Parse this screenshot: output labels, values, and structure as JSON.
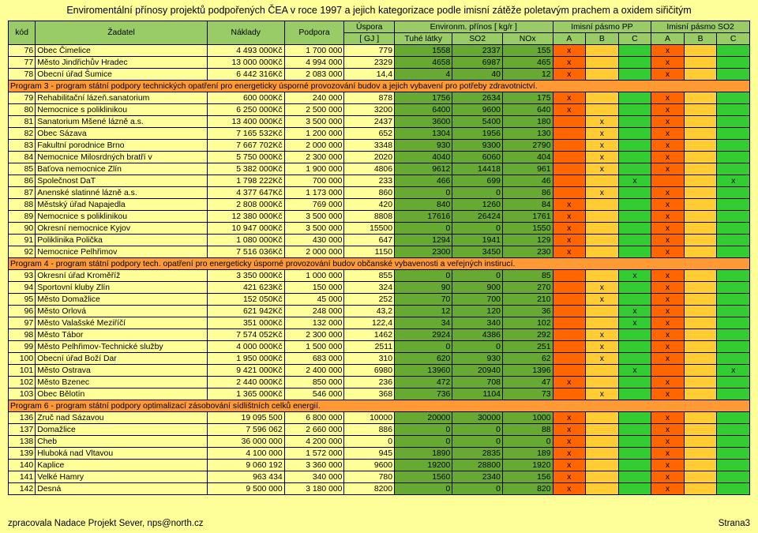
{
  "title": "Enviromentální přínosy projektů podpořených ČEA v roce 1997 a jejich kategorizace podle imisní zátěže poletavým prachem a oxidem siřičitým",
  "footer_left": "zpracovala Nadace Projekt Sever, nps@north.cz",
  "footer_right": "Strana3",
  "header": {
    "kod": "kód",
    "zadatel": "Žadatel",
    "naklady": "Náklady",
    "podpora": "Podpora",
    "uspora": "Úspora",
    "gj": "[ GJ ]",
    "environm": "Environm. přínos [ kg/r ]",
    "tuhe": "Tuhé látky",
    "so2": "SO2",
    "nox": "NOx",
    "pp": "Imisní pásmo PP",
    "pso2": "Imisní pásmo SO2",
    "a": "A",
    "b": "B",
    "c": "C"
  },
  "colors": {
    "sec_bg": "#ff9933",
    "band_a": "#ff6600",
    "band_b": "#ffcc33",
    "band_c": "#33cc33",
    "num_bg": "#66aa33",
    "hdr_bg": "#99cc66",
    "page_bg": "#ffff99"
  },
  "sections": [
    {
      "rows": [
        {
          "kod": "76",
          "zad": "Obec Čimelice",
          "nak": "4 493 000Kč",
          "pod": "1 700 000",
          "usp": "779",
          "tuh": "1558",
          "so2": "2337",
          "nox": "155",
          "pp": [
            true,
            false,
            false
          ],
          "ps": [
            true,
            false,
            false
          ]
        },
        {
          "kod": "77",
          "zad": "Město Jindřichův Hradec",
          "nak": "13 000 000Kč",
          "pod": "4 994 000",
          "usp": "2329",
          "tuh": "4658",
          "so2": "6987",
          "nox": "465",
          "pp": [
            true,
            false,
            false
          ],
          "ps": [
            true,
            false,
            false
          ]
        },
        {
          "kod": "78",
          "zad": "Obecní úřad Šumice",
          "nak": "6 442 316Kč",
          "pod": "2 083 000",
          "usp": "14,4",
          "tuh": "4",
          "so2": "40",
          "nox": "12",
          "pp": [
            true,
            false,
            false
          ],
          "ps": [
            true,
            false,
            false
          ]
        }
      ]
    },
    {
      "title": "Program 3 - program státní podpory technických opatření pro energeticky úsporné provozování budov a jejich vybavení pro potřeby zdravotnictví.",
      "rows": [
        {
          "kod": "79",
          "zad": "Rehabilitační lázeň.sanatorium",
          "nak": "600 000Kč",
          "pod": "240 000",
          "usp": "878",
          "tuh": "1756",
          "so2": "2634",
          "nox": "175",
          "pp": [
            true,
            false,
            false
          ],
          "ps": [
            true,
            false,
            false
          ]
        },
        {
          "kod": "80",
          "zad": "Nemocnice s poliklinikou",
          "nak": "6 250 000Kč",
          "pod": "2 500 000",
          "usp": "3200",
          "tuh": "6400",
          "so2": "9600",
          "nox": "640",
          "pp": [
            true,
            false,
            false
          ],
          "ps": [
            true,
            false,
            false
          ]
        },
        {
          "kod": "81",
          "zad": "Sanatorium Mšené lázně a.s.",
          "nak": "13 400 000Kč",
          "pod": "3 500 000",
          "usp": "2437",
          "tuh": "3600",
          "so2": "5400",
          "nox": "180",
          "pp": [
            false,
            true,
            false
          ],
          "ps": [
            true,
            false,
            false
          ]
        },
        {
          "kod": "82",
          "zad": "Obec Sázava",
          "nak": "7 165 532Kč",
          "pod": "1 200 000",
          "usp": "652",
          "tuh": "1304",
          "so2": "1956",
          "nox": "130",
          "pp": [
            false,
            true,
            false
          ],
          "ps": [
            true,
            false,
            false
          ]
        },
        {
          "kod": "83",
          "zad": "Fakultní porodnice Brno",
          "nak": "7 667 702Kč",
          "pod": "2 000 000",
          "usp": "3348",
          "tuh": "930",
          "so2": "9300",
          "nox": "2790",
          "pp": [
            false,
            true,
            false
          ],
          "ps": [
            true,
            false,
            false
          ]
        },
        {
          "kod": "84",
          "zad": "Nemocnice Milosrdných bratří v",
          "nak": "5 750 000Kč",
          "pod": "2 300 000",
          "usp": "2020",
          "tuh": "4040",
          "so2": "6060",
          "nox": "404",
          "pp": [
            false,
            true,
            false
          ],
          "ps": [
            true,
            false,
            false
          ]
        },
        {
          "kod": "85",
          "zad": "Baťova nemocnice Zlín",
          "nak": "5 382 000Kč",
          "pod": "1 900 000",
          "usp": "4806",
          "tuh": "9612",
          "so2": "14418",
          "nox": "961",
          "pp": [
            false,
            true,
            false
          ],
          "ps": [
            true,
            false,
            false
          ]
        },
        {
          "kod": "86",
          "zad": "Společnost DaT",
          "nak": "1 798 222Kč",
          "pod": "700 000",
          "usp": "233",
          "tuh": "466",
          "so2": "699",
          "nox": "46",
          "pp": [
            false,
            false,
            true
          ],
          "ps": [
            false,
            false,
            true
          ]
        },
        {
          "kod": "87",
          "zad": "Anenské slatinné lázně a.s.",
          "nak": "4 377 647Kč",
          "pod": "1 173 000",
          "usp": "860",
          "tuh": "0",
          "so2": "0",
          "nox": "86",
          "pp": [
            false,
            true,
            false
          ],
          "ps": [
            true,
            false,
            false
          ]
        },
        {
          "kod": "88",
          "zad": "Městský úřad Napajedla",
          "nak": "2 808 000Kč",
          "pod": "769 000",
          "usp": "420",
          "tuh": "840",
          "so2": "1260",
          "nox": "84",
          "pp": [
            true,
            false,
            false
          ],
          "ps": [
            true,
            false,
            false
          ]
        },
        {
          "kod": "89",
          "zad": "Nemocnice s poliklinikou",
          "nak": "12 380 000Kč",
          "pod": "3 500 000",
          "usp": "8808",
          "tuh": "17616",
          "so2": "26424",
          "nox": "1761",
          "pp": [
            true,
            false,
            false
          ],
          "ps": [
            true,
            false,
            false
          ]
        },
        {
          "kod": "90",
          "zad": "Okresní nemocnice Kyjov",
          "nak": "10 947 000Kč",
          "pod": "3 500 000",
          "usp": "15500",
          "tuh": "0",
          "so2": "0",
          "nox": "1550",
          "pp": [
            true,
            false,
            false
          ],
          "ps": [
            true,
            false,
            false
          ]
        },
        {
          "kod": "91",
          "zad": "Poliklinika Polička",
          "nak": "1 080 000Kč",
          "pod": "430 000",
          "usp": "647",
          "tuh": "1294",
          "so2": "1941",
          "nox": "129",
          "pp": [
            true,
            false,
            false
          ],
          "ps": [
            true,
            false,
            false
          ]
        },
        {
          "kod": "92",
          "zad": "Nemocnice Pelhřimov",
          "nak": "7 516 036Kč",
          "pod": "2 000 000",
          "usp": "1150",
          "tuh": "2300",
          "so2": "3450",
          "nox": "230",
          "pp": [
            true,
            false,
            false
          ],
          "ps": [
            true,
            false,
            false
          ]
        }
      ]
    },
    {
      "title": "Program 4 - program státní podpory tech. opatření pro energeticky úsporné provozování budov občanské vybavenosti a veřejných instirucí.",
      "rows": [
        {
          "kod": "93",
          "zad": "Okresní úřad Kroměříž",
          "nak": "3 350 000Kč",
          "pod": "1 000 000",
          "usp": "855",
          "tuh": "0",
          "so2": "0",
          "nox": "85",
          "pp": [
            false,
            false,
            true
          ],
          "ps": [
            true,
            false,
            false
          ]
        },
        {
          "kod": "94",
          "zad": "Sportovní kluby Zlín",
          "nak": "421 623Kč",
          "pod": "150 000",
          "usp": "324",
          "tuh": "90",
          "so2": "900",
          "nox": "270",
          "pp": [
            false,
            true,
            false
          ],
          "ps": [
            true,
            false,
            false
          ]
        },
        {
          "kod": "95",
          "zad": "Město Domažlice",
          "nak": "152 050Kč",
          "pod": "45 000",
          "usp": "252",
          "tuh": "70",
          "so2": "700",
          "nox": "210",
          "pp": [
            false,
            true,
            false
          ],
          "ps": [
            true,
            false,
            false
          ]
        },
        {
          "kod": "96",
          "zad": "Město Orlová",
          "nak": "621 942Kč",
          "pod": "248 000",
          "usp": "43,2",
          "tuh": "12",
          "so2": "120",
          "nox": "36",
          "pp": [
            false,
            false,
            true
          ],
          "ps": [
            true,
            false,
            false
          ]
        },
        {
          "kod": "97",
          "zad": "Město Valašské Meziříčí",
          "nak": "351 000Kč",
          "pod": "132 000",
          "usp": "122,4",
          "tuh": "34",
          "so2": "340",
          "nox": "102",
          "pp": [
            false,
            false,
            true
          ],
          "ps": [
            true,
            false,
            false
          ]
        },
        {
          "kod": "98",
          "zad": "Město Tábor",
          "nak": "7 574 052Kč",
          "pod": "2 300 000",
          "usp": "1462",
          "tuh": "2924",
          "so2": "4386",
          "nox": "292",
          "pp": [
            false,
            true,
            false
          ],
          "ps": [
            true,
            false,
            false
          ]
        },
        {
          "kod": "99",
          "zad": "Město Pelhřimov-Technické služby",
          "nak": "4 000 000Kč",
          "pod": "1 500 000",
          "usp": "2511",
          "tuh": "0",
          "so2": "0",
          "nox": "251",
          "pp": [
            false,
            true,
            false
          ],
          "ps": [
            true,
            false,
            false
          ]
        },
        {
          "kod": "100",
          "zad": "Obecní úřad Boží Dar",
          "nak": "1 950 000Kč",
          "pod": "683 000",
          "usp": "310",
          "tuh": "620",
          "so2": "930",
          "nox": "62",
          "pp": [
            false,
            true,
            false
          ],
          "ps": [
            true,
            false,
            false
          ]
        },
        {
          "kod": "101",
          "zad": "Město Ostrava",
          "nak": "9 421 000Kč",
          "pod": "2 400 000",
          "usp": "6980",
          "tuh": "13960",
          "so2": "20940",
          "nox": "1396",
          "pp": [
            false,
            false,
            true
          ],
          "ps": [
            false,
            false,
            true
          ]
        },
        {
          "kod": "102",
          "zad": "Město Bzenec",
          "nak": "2 440 000Kč",
          "pod": "850 000",
          "usp": "236",
          "tuh": "472",
          "so2": "708",
          "nox": "47",
          "pp": [
            true,
            false,
            false
          ],
          "ps": [
            true,
            false,
            false
          ]
        },
        {
          "kod": "103",
          "zad": "Obec Bělotín",
          "nak": "1 365 000Kč",
          "pod": "546 000",
          "usp": "368",
          "tuh": "736",
          "so2": "1104",
          "nox": "73",
          "pp": [
            false,
            true,
            false
          ],
          "ps": [
            true,
            false,
            false
          ]
        }
      ]
    },
    {
      "title": "Program 6 - program státní podpory optimalizací zásobování sídlištních celků energií.",
      "rows": [
        {
          "kod": "136",
          "zad": "Zruč nad Sázavou",
          "nak": "19 095 500",
          "pod": "6 800 000",
          "usp": "10000",
          "tuh": "20000",
          "so2": "30000",
          "nox": "1000",
          "pp": [
            true,
            false,
            false
          ],
          "ps": [
            true,
            false,
            false
          ]
        },
        {
          "kod": "137",
          "zad": "Domažlice",
          "nak": "7 596 062",
          "pod": "2 660 000",
          "usp": "886",
          "tuh": "0",
          "so2": "0",
          "nox": "88",
          "pp": [
            true,
            false,
            false
          ],
          "ps": [
            true,
            false,
            false
          ]
        },
        {
          "kod": "138",
          "zad": "Cheb",
          "nak": "36 000 000",
          "pod": "4 200 000",
          "usp": "0",
          "tuh": "0",
          "so2": "0",
          "nox": "0",
          "pp": [
            true,
            false,
            false
          ],
          "ps": [
            true,
            false,
            false
          ]
        },
        {
          "kod": "139",
          "zad": "Hluboká nad Vltavou",
          "nak": "4 100 000",
          "pod": "1 572 000",
          "usp": "945",
          "tuh": "1890",
          "so2": "2835",
          "nox": "189",
          "pp": [
            true,
            false,
            false
          ],
          "ps": [
            true,
            false,
            false
          ]
        },
        {
          "kod": "140",
          "zad": "Kaplice",
          "nak": "9 060 192",
          "pod": "3 360 000",
          "usp": "9600",
          "tuh": "19200",
          "so2": "28800",
          "nox": "1920",
          "pp": [
            true,
            false,
            false
          ],
          "ps": [
            true,
            false,
            false
          ]
        },
        {
          "kod": "141",
          "zad": "Velké Hamry",
          "nak": "963 434",
          "pod": "340 000",
          "usp": "780",
          "tuh": "1560",
          "so2": "2340",
          "nox": "156",
          "pp": [
            true,
            false,
            false
          ],
          "ps": [
            true,
            false,
            false
          ]
        },
        {
          "kod": "142",
          "zad": "Desná",
          "nak": "9 500 000",
          "pod": "3 180 000",
          "usp": "8200",
          "tuh": "0",
          "so2": "0",
          "nox": "820",
          "pp": [
            true,
            false,
            false
          ],
          "ps": [
            true,
            false,
            false
          ]
        }
      ]
    }
  ]
}
